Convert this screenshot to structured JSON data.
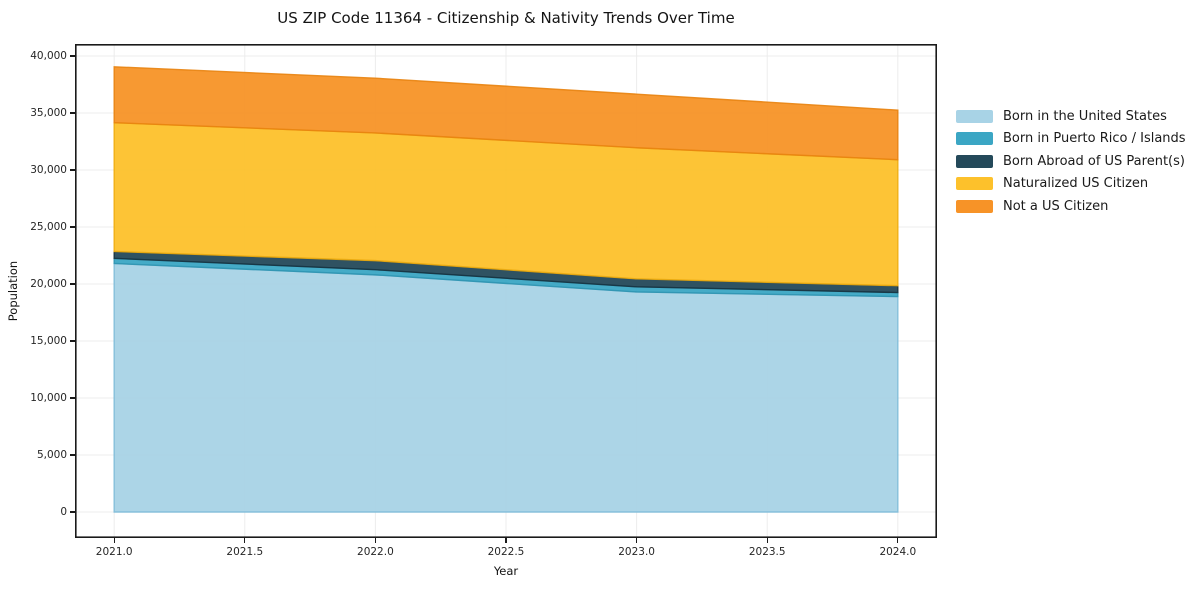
{
  "page": {
    "title": "US ZIP Code 11364 - Citizenship & Nativity Trends Over Time"
  },
  "chart_data": {
    "type": "area",
    "stacked": true,
    "title": "US ZIP Code 11364 - Citizenship & Nativity Trends Over Time",
    "xlabel": "Year",
    "ylabel": "Population",
    "x": [
      2021,
      2022,
      2023,
      2024
    ],
    "series": [
      {
        "name": "Born in the United States",
        "color": "#a8d3e6",
        "edge": "#7fbcd9",
        "values": [
          21800,
          20800,
          19300,
          18900
        ]
      },
      {
        "name": "Born in Puerto Rico / Islands",
        "color": "#3ba6c4",
        "edge": "#2e93b0",
        "values": [
          450,
          450,
          450,
          350
        ]
      },
      {
        "name": "Born Abroad of US Parent(s)",
        "color": "#24495a",
        "edge": "#16323f",
        "values": [
          600,
          800,
          700,
          600
        ]
      },
      {
        "name": "Naturalized US Citizen",
        "color": "#fdc12b",
        "edge": "#f0ad0e",
        "values": [
          11300,
          11200,
          11500,
          11050
        ]
      },
      {
        "name": "Not a US Citizen",
        "color": "#f79327",
        "edge": "#e8830f",
        "values": [
          4900,
          4800,
          4700,
          4350
        ]
      }
    ],
    "totals": [
      39050,
      38050,
      36650,
      35250
    ],
    "xlim": [
      2020.85,
      2024.15
    ],
    "ylim": [
      -2280,
      41050
    ],
    "grid": true,
    "grid_color": "#ececec",
    "frame_color": "#1a1a1a",
    "legend_position": "right-outside",
    "xticks": {
      "values": [
        2021,
        2021.5,
        2022,
        2022.5,
        2023,
        2023.5,
        2024
      ],
      "labels": [
        "2021.0",
        "2021.5",
        "2022.0",
        "2022.5",
        "2023.0",
        "2023.5",
        "2024.0"
      ]
    },
    "yticks": {
      "values": [
        0,
        5000,
        10000,
        15000,
        20000,
        25000,
        30000,
        35000,
        40000
      ],
      "labels": [
        "0",
        "5,000",
        "10,000",
        "15,000",
        "20,000",
        "25,000",
        "30,000",
        "35,000",
        "40,000"
      ]
    }
  }
}
